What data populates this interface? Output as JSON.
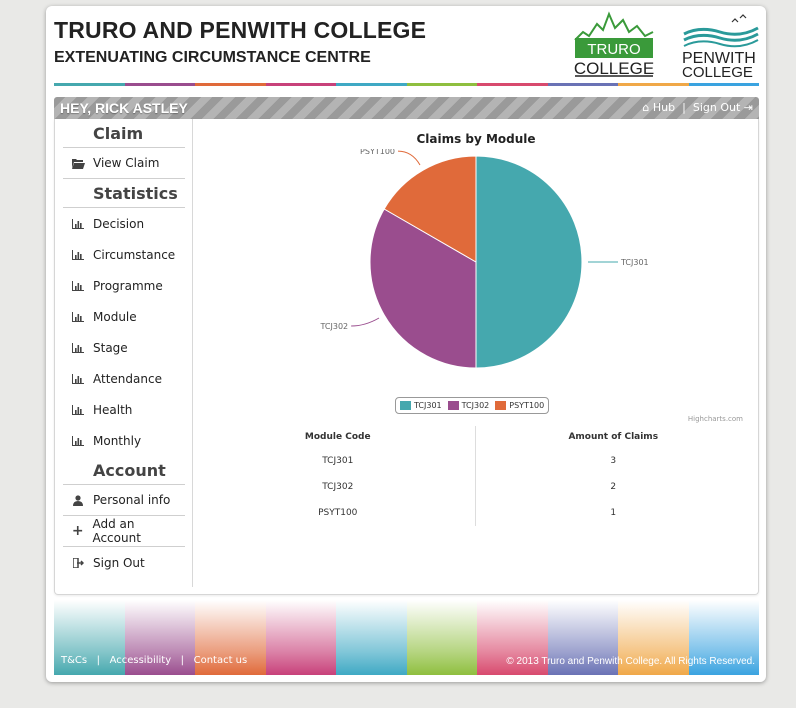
{
  "header": {
    "title": "TRURO AND PENWITH COLLEGE",
    "subtitle": "EXTENUATING CIRCUMSTANCE CENTRE",
    "logo_truro": [
      "TRURO",
      "COLLEGE"
    ],
    "logo_penwith": [
      "PENWITH",
      "COLLEGE"
    ],
    "strip_colors": [
      "#45a8ae",
      "#9a4d8e",
      "#e06a3a",
      "#c8417a",
      "#3fa9c4",
      "#8fbf3f",
      "#d84a6e",
      "#6a72b5",
      "#f0a848",
      "#3aa3e0"
    ]
  },
  "userbar": {
    "greeting": "HEY, RICK ASTLEY",
    "hub_label": "Hub",
    "separator": "|",
    "signout_label": "Sign Out"
  },
  "sidebar": {
    "claim_heading": "Claim",
    "claim_items": [
      {
        "label": "View Claim",
        "icon": "folder-open-icon"
      }
    ],
    "stats_heading": "Statistics",
    "stats_items": [
      {
        "label": "Decision",
        "icon": "bar-chart-icon"
      },
      {
        "label": "Circumstance",
        "icon": "bar-chart-icon"
      },
      {
        "label": "Programme",
        "icon": "bar-chart-icon"
      },
      {
        "label": "Module",
        "icon": "bar-chart-icon"
      },
      {
        "label": "Stage",
        "icon": "bar-chart-icon"
      },
      {
        "label": "Attendance",
        "icon": "bar-chart-icon"
      },
      {
        "label": "Health",
        "icon": "bar-chart-icon"
      },
      {
        "label": "Monthly",
        "icon": "bar-chart-icon"
      }
    ],
    "account_heading": "Account",
    "account_items": [
      {
        "label": "Personal info",
        "icon": "user-icon"
      },
      {
        "label": "Add an Account",
        "icon": "plus-icon"
      },
      {
        "label": "Sign Out",
        "icon": "sign-out-icon"
      }
    ]
  },
  "chart_data": {
    "type": "pie",
    "title": "Claims by Module",
    "categories": [
      "TCJ301",
      "TCJ302",
      "PSYT100"
    ],
    "values": [
      3,
      2,
      1
    ],
    "colors": [
      "#45a8ae",
      "#9a4d8e",
      "#e06a3a"
    ],
    "legend": "bottom-center",
    "credit": "Highcharts.com"
  },
  "table": {
    "headers": [
      "Module Code",
      "Amount of Claims"
    ],
    "rows": [
      [
        "TCJ301",
        "3"
      ],
      [
        "TCJ302",
        "2"
      ],
      [
        "PSYT100",
        "1"
      ]
    ]
  },
  "footer": {
    "links": [
      "T&Cs",
      "Accessibility",
      "Contact us"
    ],
    "separator": "|",
    "copyright": "© 2013 Truro and Penwith College. All Rights Reserved.",
    "band_colors": [
      "#45a8ae",
      "#9a4d8e",
      "#e06a3a",
      "#c8417a",
      "#3fa9c4",
      "#8fbf3f",
      "#d84a6e",
      "#6a72b5",
      "#f0a848",
      "#3aa3e0"
    ]
  }
}
